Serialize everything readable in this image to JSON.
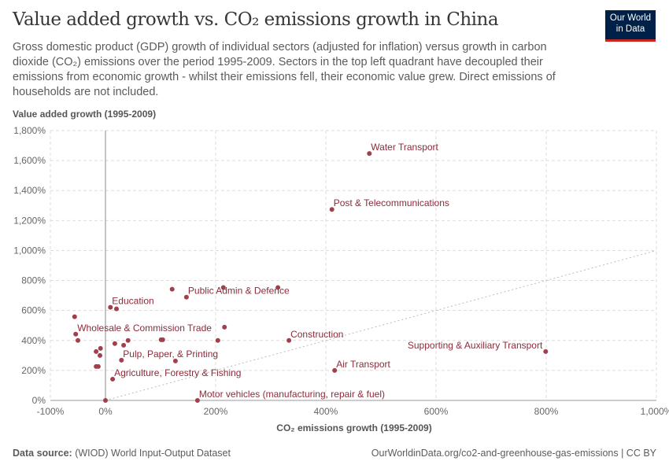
{
  "header": {
    "title": "Value added growth vs. CO₂ emissions growth in China",
    "subtitle": "Gross domestic product (GDP) growth of individual sectors (adjusted for inflation) versus growth in carbon dioxide (CO₂) emissions over the period 1995-2009. Sectors in the top left quadrant have decoupled their emissions from economic growth - whilst their emissions fell, their economic value grew. Direct emissions of households are not included.",
    "logo": "Our World in Data"
  },
  "footer": {
    "source_label": "Data source:",
    "source": "(WIOD) World Input-Output Dataset",
    "url": "OurWorldinData.org/co2-and-greenhouse-gas-emissions | CC BY"
  },
  "colors": {
    "point": "#a0404c",
    "label": "#8c2b3a",
    "grid": "#dddddd"
  },
  "chart_data": {
    "type": "scatter",
    "xlabel": "CO₂ emissions growth (1995-2009)",
    "ylabel": "Value added growth (1995-2009)",
    "xlim": [
      -100,
      1000
    ],
    "ylim": [
      0,
      1800
    ],
    "xticks": [
      -100,
      0,
      200,
      400,
      600,
      800,
      1000
    ],
    "xtick_labels": [
      "-100%",
      "0%",
      "200%",
      "400%",
      "600%",
      "800%",
      "1,000%"
    ],
    "yticks": [
      0,
      200,
      400,
      600,
      800,
      1000,
      1200,
      1400,
      1600,
      1800
    ],
    "ytick_labels": [
      "0%",
      "200%",
      "400%",
      "600%",
      "800%",
      "1,000%",
      "1,200%",
      "1,400%",
      "1,600%",
      "1,800%"
    ],
    "grid": true,
    "reference_line": "y = x",
    "points": [
      {
        "x": 479,
        "y": 1647,
        "label": "Water Transport"
      },
      {
        "x": 411,
        "y": 1274,
        "label": "Post & Telecommunications"
      },
      {
        "x": 147,
        "y": 689,
        "label": "Public Admin & Defence"
      },
      {
        "x": 121,
        "y": 742
      },
      {
        "x": 214,
        "y": 753
      },
      {
        "x": 313,
        "y": 753
      },
      {
        "x": 9,
        "y": 621,
        "label": "Education"
      },
      {
        "x": 20,
        "y": 611
      },
      {
        "x": -56,
        "y": 558
      },
      {
        "x": -54,
        "y": 442,
        "label": "Wholesale & Commission Trade"
      },
      {
        "x": -50,
        "y": 400
      },
      {
        "x": 216,
        "y": 489
      },
      {
        "x": 41,
        "y": 400
      },
      {
        "x": 101,
        "y": 405
      },
      {
        "x": 104,
        "y": 405
      },
      {
        "x": 204,
        "y": 400
      },
      {
        "x": 333,
        "y": 400,
        "label": "Construction"
      },
      {
        "x": 17,
        "y": 379
      },
      {
        "x": 33,
        "y": 368
      },
      {
        "x": -9,
        "y": 347
      },
      {
        "x": -17,
        "y": 326
      },
      {
        "x": -10,
        "y": 300
      },
      {
        "x": 29,
        "y": 268,
        "label": "Pulp, Paper, & Printing"
      },
      {
        "x": 127,
        "y": 263
      },
      {
        "x": -17,
        "y": 226
      },
      {
        "x": -13,
        "y": 226
      },
      {
        "x": 13,
        "y": 142,
        "label": "Agriculture, Forestry & Fishing"
      },
      {
        "x": 416,
        "y": 200,
        "label": "Air Transport"
      },
      {
        "x": 799,
        "y": 326,
        "label": "Supporting & Auxiliary Transport",
        "label_side": "left"
      },
      {
        "x": 167,
        "y": 0,
        "label": "Motor vehicles (manufacturing, repair & fuel)"
      },
      {
        "x": 0,
        "y": 0
      }
    ]
  }
}
